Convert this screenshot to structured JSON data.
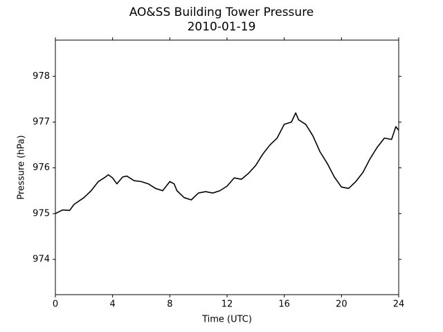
{
  "chart_data": {
    "type": "line",
    "title": "AO&SS Building Tower Pressure",
    "subtitle": "2010-01-19",
    "x_label": "Time (UTC)",
    "y_label": "Pressure (hPa)",
    "color": "#000000",
    "x": [
      0,
      0.5,
      1,
      1.3,
      2,
      2.5,
      3,
      3.5,
      3.7,
      4,
      4.3,
      4.7,
      5,
      5.5,
      6,
      6.5,
      7,
      7.5,
      8,
      8.3,
      8.5,
      9,
      9.5,
      10,
      10.5,
      11,
      11.5,
      12,
      12.5,
      13,
      13.5,
      14,
      14.5,
      15,
      15.5,
      16,
      16.5,
      16.8,
      17,
      17.5,
      18,
      18.5,
      19,
      19.5,
      20,
      20.5,
      21,
      21.5,
      22,
      22.5,
      23,
      23.5,
      23.8,
      24
    ],
    "values": [
      975.0,
      975.08,
      975.07,
      975.2,
      975.35,
      975.5,
      975.7,
      975.8,
      975.85,
      975.78,
      975.65,
      975.8,
      975.82,
      975.72,
      975.7,
      975.65,
      975.55,
      975.5,
      975.7,
      975.65,
      975.5,
      975.35,
      975.3,
      975.45,
      975.48,
      975.45,
      975.5,
      975.6,
      975.78,
      975.75,
      975.88,
      976.05,
      976.3,
      976.5,
      976.65,
      976.95,
      977.0,
      977.2,
      977.05,
      976.95,
      976.7,
      976.35,
      976.1,
      975.8,
      975.58,
      975.55,
      975.7,
      975.9,
      976.2,
      976.45,
      976.65,
      976.62,
      976.9,
      976.82
    ],
    "xlim": [
      0,
      24
    ],
    "xticks": [
      0,
      4,
      8,
      12,
      16,
      20,
      24
    ],
    "ylim": [
      973.23,
      978.79
    ],
    "yticks": [
      974,
      975,
      976,
      977,
      978
    ]
  }
}
